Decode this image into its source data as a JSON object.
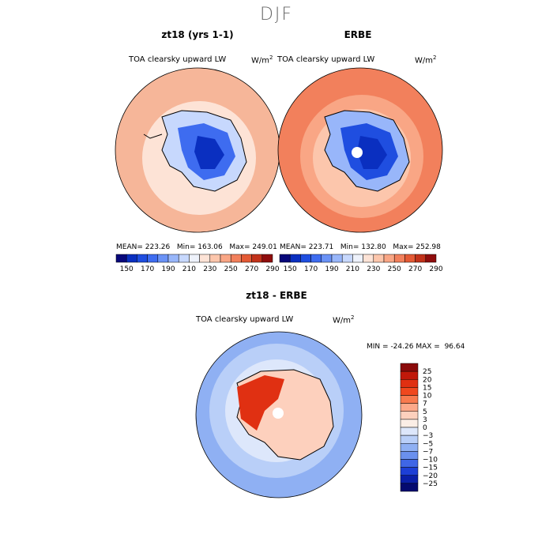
{
  "figure": {
    "season": "DJF"
  },
  "chart_data": [
    {
      "type": "heatmap",
      "title": "zt18 (yrs 1-1)",
      "variable": "TOA clearsky upward LW",
      "units": "W/m",
      "units_exp": "2",
      "mean": "223.26",
      "min": "163.06",
      "max": "249.01",
      "mean_label": "MEAN=",
      "min_label": "Min=",
      "max_label": "Max=",
      "projection": "south polar stereographic",
      "levels": [
        150,
        160,
        170,
        180,
        190,
        200,
        210,
        220,
        230,
        240,
        250,
        260,
        270,
        280,
        290
      ],
      "tick_labels": [
        "150",
        "170",
        "190",
        "210",
        "230",
        "250",
        "270",
        "290"
      ],
      "colors": [
        "#08087a",
        "#0a2fc0",
        "#1f4ee0",
        "#3e6cf0",
        "#6a92f6",
        "#98b6fa",
        "#c7d8fd",
        "#eef2fb",
        "#fde3d6",
        "#fcc6ac",
        "#f9a685",
        "#f2805c",
        "#e45a35",
        "#c2321a",
        "#8f0d0d"
      ]
    },
    {
      "type": "heatmap",
      "title": "ERBE",
      "variable": "TOA clearsky upward LW",
      "units": "W/m",
      "units_exp": "2",
      "mean": "223.71",
      "min": "132.80",
      "max": "252.98",
      "mean_label": "MEAN=",
      "min_label": "Min=",
      "max_label": "Max=",
      "projection": "south polar stereographic",
      "levels": [
        150,
        160,
        170,
        180,
        190,
        200,
        210,
        220,
        230,
        240,
        250,
        260,
        270,
        280,
        290
      ],
      "tick_labels": [
        "150",
        "170",
        "190",
        "210",
        "230",
        "250",
        "270",
        "290"
      ],
      "colors": [
        "#08087a",
        "#0a2fc0",
        "#1f4ee0",
        "#3e6cf0",
        "#6a92f6",
        "#98b6fa",
        "#c7d8fd",
        "#eef2fb",
        "#fde3d6",
        "#fcc6ac",
        "#f9a685",
        "#f2805c",
        "#e45a35",
        "#c2321a",
        "#8f0d0d"
      ]
    },
    {
      "type": "heatmap",
      "title": "zt18 - ERBE",
      "variable": "TOA clearsky upward LW",
      "units": "W/m",
      "units_exp": "2",
      "min_label": "MIN =",
      "min": "-24.26",
      "max_label": "MAX =",
      "max": "96.64",
      "projection": "south polar stereographic",
      "levels": [
        25,
        20,
        15,
        10,
        7,
        5,
        3,
        0,
        -3,
        -5,
        -7,
        -10,
        -15,
        -20,
        -25
      ],
      "tick_labels": [
        "25",
        "20",
        "15",
        "10",
        "7",
        "5",
        "3",
        "0",
        "−3",
        "−5",
        "−7",
        "−10",
        "−15",
        "−20",
        "−25"
      ],
      "colors": [
        "#8a0a0a",
        "#c0180a",
        "#e03012",
        "#f0481e",
        "#f87a4e",
        "#fca98a",
        "#fdd0bd",
        "#fbeee6",
        "#dde7fb",
        "#b9cff8",
        "#8fb0f3",
        "#6a90ee",
        "#3f66e6",
        "#1d3fd6",
        "#0a1fa8",
        "#040a70"
      ]
    }
  ]
}
